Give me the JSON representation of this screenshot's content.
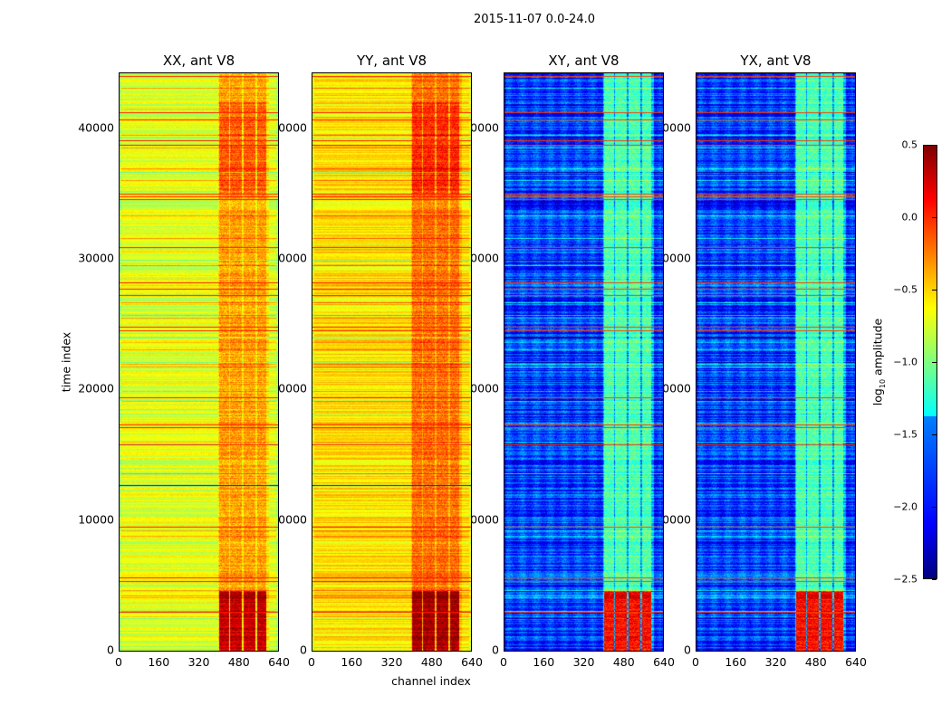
{
  "chart_data": {
    "type": "heatmap",
    "title": "2015-11-07 0.0-24.0",
    "xlabel": "channel index",
    "ylabel": "time index",
    "xlim": [
      0,
      640
    ],
    "ylim": [
      0,
      44200
    ],
    "x_ticks": [
      "0",
      "160",
      "320",
      "480",
      "640"
    ],
    "x_tick_values": [
      0,
      160,
      320,
      480,
      640
    ],
    "y_ticks": [
      "0",
      "10000",
      "20000",
      "30000",
      "40000"
    ],
    "y_tick_values": [
      0,
      10000,
      20000,
      30000,
      40000
    ],
    "panels": [
      {
        "title": "XX, ant V8",
        "base": -0.72,
        "band_level": -0.35,
        "early_band_level": 0.3
      },
      {
        "title": "YY, ant V8",
        "base": -0.55,
        "band_level": -0.2,
        "early_band_level": 0.4
      },
      {
        "title": "XY, ant V8",
        "base": -1.95,
        "band_level": -1.15,
        "early_band_level": 0.1
      },
      {
        "title": "YX, ant V8",
        "base": -1.95,
        "band_level": -1.15,
        "early_band_level": 0.1
      }
    ],
    "active_channel_bands": [
      [
        400,
        440
      ],
      [
        446,
        492
      ],
      [
        500,
        545
      ],
      [
        555,
        592
      ]
    ],
    "flagged_time_rows": [
      44000,
      41200,
      40700,
      39100,
      38700,
      35000,
      34800,
      34600,
      30900,
      28200,
      27700,
      27200,
      24800,
      24500,
      19400,
      17300,
      17100,
      15800,
      9500,
      5600,
      5300,
      3000
    ],
    "low_time_rows": [
      12700
    ],
    "colorbar": {
      "label": "log10 amplitude",
      "label_main": "log",
      "label_sub": "10",
      "label_rest": " amplitude",
      "range": [
        -2.5,
        0.5
      ],
      "ticks": [
        "0.5",
        "0.0",
        "−0.5",
        "−1.0",
        "−1.5",
        "−2.0",
        "−2.5"
      ],
      "tick_values": [
        0.5,
        0.0,
        -0.5,
        -1.0,
        -1.5,
        -2.0,
        -2.5
      ],
      "colormap": "jet"
    }
  }
}
